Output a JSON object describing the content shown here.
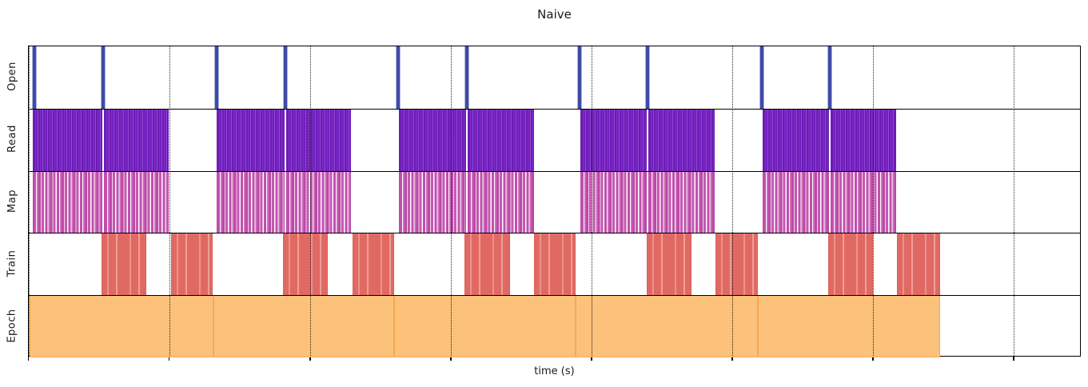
{
  "title": "Naive",
  "xlabel": "time (s)",
  "chart_data": {
    "type": "timeline",
    "title": "Naive",
    "xlabel": "time (s)",
    "xlim": [
      0,
      7.48
    ],
    "x_major_ticks": [
      0,
      1,
      2,
      3,
      4,
      5,
      6,
      7
    ],
    "tick_labels_shown": false,
    "grid": "dotted vertical lines at major ticks, drawn over bars",
    "row_order_top_to_bottom": [
      "Open",
      "Read",
      "Map",
      "Train",
      "Epoch"
    ],
    "rows": [
      {
        "label": "Open",
        "style": "spike",
        "color": "#3e4ba6",
        "events": [
          0.04,
          0.528,
          1.335,
          1.824,
          2.625,
          3.114,
          3.915,
          4.398,
          5.21,
          5.693
        ]
      },
      {
        "label": "Read",
        "style": "dense_stripes",
        "color": "#7724c1",
        "segments": [
          [
            0.028,
            0.523
          ],
          [
            0.534,
            0.994
          ],
          [
            1.335,
            1.818
          ],
          [
            1.83,
            2.29
          ],
          [
            2.631,
            3.108
          ],
          [
            3.119,
            3.591
          ],
          [
            3.92,
            4.392
          ],
          [
            4.403,
            4.875
          ],
          [
            5.216,
            5.688
          ],
          [
            5.699,
            6.165
          ]
        ]
      },
      {
        "label": "Map",
        "style": "sparse_stripes",
        "color": "#c455b1",
        "segments": [
          [
            0.028,
            0.523
          ],
          [
            0.534,
            0.994
          ],
          [
            1.335,
            1.818
          ],
          [
            1.83,
            2.29
          ],
          [
            2.631,
            3.108
          ],
          [
            3.119,
            3.591
          ],
          [
            3.92,
            4.392
          ],
          [
            4.403,
            4.875
          ],
          [
            5.216,
            5.688
          ],
          [
            5.699,
            6.165
          ]
        ]
      },
      {
        "label": "Train",
        "style": "striped_block",
        "color": "#e06a63",
        "segments": [
          [
            0.517,
            0.835
          ],
          [
            1.011,
            1.307
          ],
          [
            1.807,
            2.125
          ],
          [
            2.301,
            2.597
          ],
          [
            3.097,
            3.42
          ],
          [
            3.591,
            3.886
          ],
          [
            4.392,
            4.71
          ],
          [
            4.881,
            5.182
          ],
          [
            5.682,
            6.0
          ],
          [
            6.17,
            6.477
          ]
        ]
      },
      {
        "label": "Epoch",
        "style": "solid_block",
        "color": "#fcc27b",
        "edge_color": "#f5a950",
        "segments": [
          [
            0.006,
            1.31
          ],
          [
            1.31,
            2.597
          ],
          [
            2.597,
            3.886
          ],
          [
            3.886,
            5.182
          ],
          [
            5.182,
            6.477
          ]
        ]
      }
    ]
  }
}
